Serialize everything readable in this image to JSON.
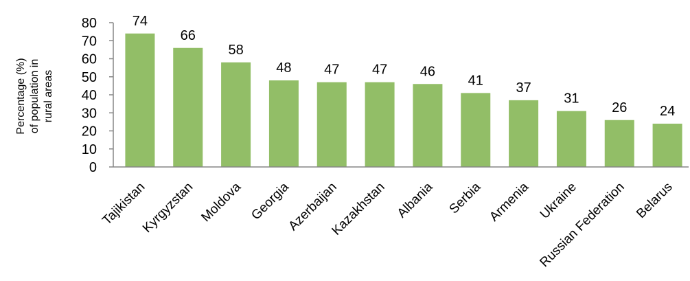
{
  "chart_data": {
    "type": "bar",
    "title": "",
    "xlabel": "",
    "ylabel_lines": [
      "Percentage (%)",
      "of population in",
      "rural areas"
    ],
    "categories": [
      "Tajikistan",
      "Kyrgyzstan",
      "Moldova",
      "Georgia",
      "Azerbaijan",
      "Kazakhstan",
      "Albania",
      "Serbia",
      "Armenia",
      "Ukraine",
      "Russian Federation",
      "Belarus"
    ],
    "values": [
      74,
      66,
      58,
      48,
      47,
      47,
      46,
      41,
      37,
      31,
      26,
      24
    ],
    "ylim": [
      0,
      80
    ],
    "yticks": [
      0,
      10,
      20,
      30,
      40,
      50,
      60,
      70,
      80
    ],
    "grid": false,
    "legend": "none",
    "bar_color": "#92BE67",
    "axis_color": "#868686"
  }
}
